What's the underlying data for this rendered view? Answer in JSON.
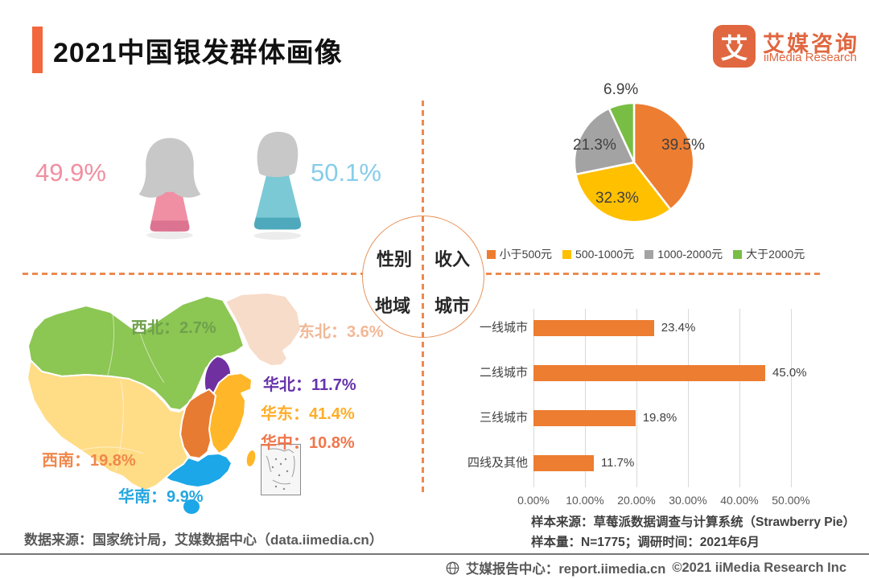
{
  "header": {
    "title": "2021中国银发群体画像",
    "logo_glyph": "艾",
    "brand_cn": "艾媒咨询",
    "brand_en": "iiMedia Research",
    "accent_color": "#F2683C"
  },
  "wheel": {
    "top_left": "性别",
    "top_right": "收入",
    "bottom_left": "地域",
    "bottom_right": "城市"
  },
  "gender": {
    "female": {
      "value": "49.9%",
      "color": "#F08FA0"
    },
    "male": {
      "value": "50.1%",
      "color": "#86CDEA"
    }
  },
  "chart_data": [
    {
      "id": "income_pie",
      "type": "pie",
      "start_angle_deg": 0,
      "clockwise": true,
      "slices": [
        {
          "label": "小于500元",
          "value": 39.5,
          "display": "39.5%",
          "color": "#ED7D31"
        },
        {
          "label": "500-1000元",
          "value": 32.3,
          "display": "32.3%",
          "color": "#FFC000"
        },
        {
          "label": "1000-2000元",
          "value": 21.3,
          "display": "21.3%",
          "color": "#A3A3A3"
        },
        {
          "label": "大于2000元",
          "value": 6.9,
          "display": "6.9%",
          "color": "#79BE44"
        }
      ],
      "legend_position": "bottom"
    },
    {
      "id": "city_bars",
      "type": "bar",
      "orientation": "horizontal",
      "categories": [
        "一线城市",
        "二线城市",
        "三线城市",
        "四线及其他"
      ],
      "values": [
        23.4,
        45.0,
        19.8,
        11.7
      ],
      "value_labels": [
        "23.4%",
        "45.0%",
        "19.8%",
        "11.7%"
      ],
      "bar_color": "#ED7D31",
      "xlim": [
        0,
        50
      ],
      "xticks": [
        0,
        10,
        20,
        30,
        40,
        50
      ],
      "xtick_labels": [
        "0.00%",
        "10.00%",
        "20.00%",
        "30.00%",
        "40.00%",
        "50.00%"
      ],
      "grid": true
    },
    {
      "id": "region_map",
      "type": "map",
      "regions": [
        {
          "key": "northwest",
          "name": "西北",
          "display": "2.7%",
          "fill": "#8CC653",
          "label_color": "#6FA04C"
        },
        {
          "key": "northeast",
          "name": "东北",
          "display": "3.6%",
          "fill": "#F7DCC9",
          "label_color": "#F2B896"
        },
        {
          "key": "north",
          "name": "华北",
          "display": "11.7%",
          "fill": "#7030A0",
          "label_color": "#6633AA"
        },
        {
          "key": "east",
          "name": "华东",
          "display": "41.4%",
          "fill": "#FFB628",
          "label_color": "#FFAD29"
        },
        {
          "key": "central",
          "name": "华中",
          "display": "10.8%",
          "fill": "#E87B32",
          "label_color": "#F0764B"
        },
        {
          "key": "southwest",
          "name": "西南",
          "display": "19.8%",
          "fill": "#FFDC86",
          "label_color": "#F0874B"
        },
        {
          "key": "south",
          "name": "华南",
          "display": "9.9%",
          "fill": "#1CA7E8",
          "label_color": "#24A6E0"
        }
      ]
    }
  ],
  "footer": {
    "data_source": "数据来源：国家统计局，艾媒数据中心（data.iimedia.cn）",
    "sample_source": "样本来源：草莓派数据调查与计算系统（Strawberry Pie）",
    "sample_info": "样本量：N=1775；调研时间：2021年6月",
    "report_center": "艾媒报告中心：report.iimedia.cn",
    "copyright": "©2021  iiMedia Research Inc"
  }
}
